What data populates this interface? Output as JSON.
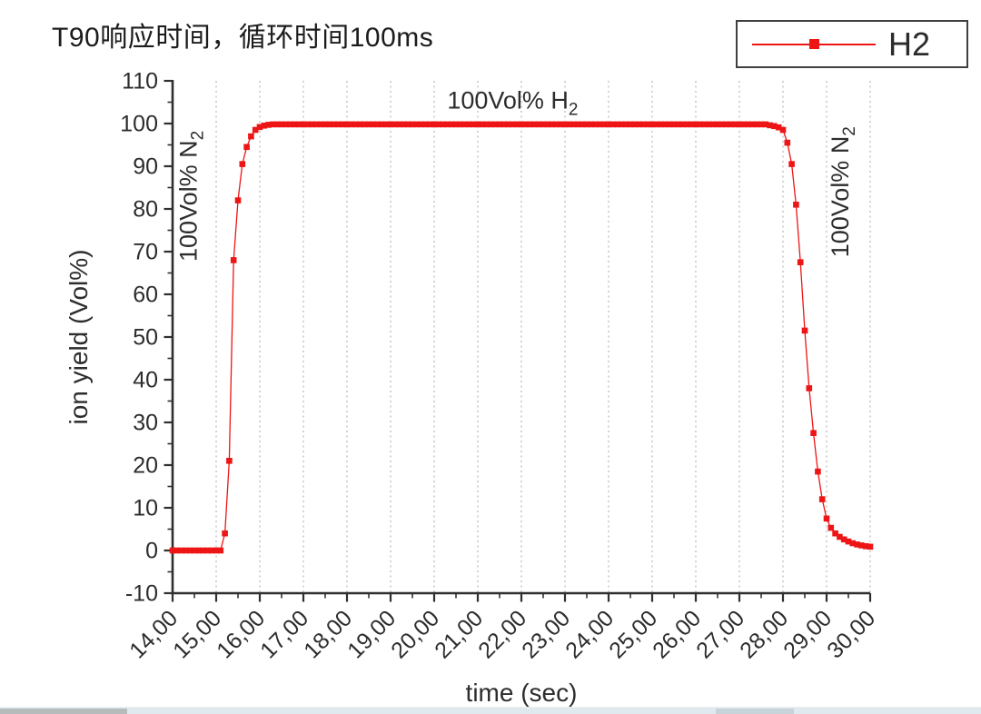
{
  "page": {
    "title": "T90响应时间，循环时间100ms"
  },
  "chart_data": {
    "type": "line",
    "title": "T90响应时间，循环时间100ms",
    "xlabel": "time (sec)",
    "ylabel": "ion yield (Vol%)",
    "xlim": [
      14,
      30
    ],
    "ylim": [
      -10,
      110
    ],
    "x_start": 14.0,
    "x_step": 0.1,
    "x_tick_labels": [
      "14,00",
      "15,00",
      "16,00",
      "17,00",
      "18,00",
      "19,00",
      "20,00",
      "21,00",
      "22,00",
      "23,00",
      "24,00",
      "25,00",
      "26,00",
      "27,00",
      "28,00",
      "29,00",
      "30,00"
    ],
    "y_tick_values": [
      -10,
      0,
      10,
      20,
      30,
      40,
      50,
      60,
      70,
      80,
      90,
      100,
      110
    ],
    "x_minor_step": 0.5,
    "y_minor_step": 5,
    "grid": "vertical-dashed-only",
    "grid_x": [
      15,
      16,
      17,
      18,
      19,
      20,
      21,
      22,
      23,
      24,
      25,
      26,
      27,
      28,
      29,
      30
    ],
    "legend_position": "top-right-outside",
    "series": [
      {
        "name": "H2",
        "color": "#ed1515",
        "marker": "square",
        "values": [
          0,
          0,
          0,
          0,
          0,
          0,
          0,
          0,
          0,
          0,
          0,
          0,
          4,
          21,
          68,
          82,
          90.5,
          94.5,
          97,
          98.5,
          99.2,
          99.5,
          99.7,
          99.8,
          99.8,
          99.8,
          99.8,
          99.8,
          99.8,
          99.8,
          99.8,
          99.8,
          99.8,
          99.8,
          99.8,
          99.8,
          99.8,
          99.8,
          99.8,
          99.8,
          99.8,
          99.8,
          99.8,
          99.8,
          99.8,
          99.8,
          99.8,
          99.8,
          99.8,
          99.8,
          99.8,
          99.8,
          99.8,
          99.8,
          99.8,
          99.8,
          99.8,
          99.8,
          99.8,
          99.8,
          99.8,
          99.8,
          99.8,
          99.8,
          99.8,
          99.8,
          99.8,
          99.8,
          99.8,
          99.8,
          99.8,
          99.8,
          99.8,
          99.8,
          99.8,
          99.8,
          99.8,
          99.8,
          99.8,
          99.8,
          99.8,
          99.8,
          99.8,
          99.8,
          99.8,
          99.8,
          99.8,
          99.8,
          99.8,
          99.8,
          99.8,
          99.8,
          99.8,
          99.8,
          99.8,
          99.8,
          99.8,
          99.8,
          99.8,
          99.8,
          99.8,
          99.8,
          99.8,
          99.8,
          99.8,
          99.8,
          99.8,
          99.8,
          99.8,
          99.8,
          99.8,
          99.8,
          99.8,
          99.8,
          99.8,
          99.8,
          99.8,
          99.8,
          99.8,
          99.8,
          99.8,
          99.8,
          99.8,
          99.8,
          99.8,
          99.8,
          99.8,
          99.8,
          99.8,
          99.8,
          99.8,
          99.8,
          99.8,
          99.8,
          99.8,
          99.8,
          99.8,
          99.6,
          99.4,
          99.1,
          98.5,
          95.5,
          90.5,
          81,
          67.5,
          51.5,
          38,
          27.5,
          18.5,
          12,
          7.5,
          5.3,
          4,
          3.2,
          2.6,
          2.1,
          1.7,
          1.4,
          1.2,
          1,
          0.9
        ]
      }
    ],
    "annotations": [
      {
        "text": "100Vol% N",
        "sub": "2",
        "rotate": -90,
        "t": 14.55,
        "v": 83
      },
      {
        "text": "100Vol% H",
        "sub": "2",
        "rotate": 0,
        "t": 21.8,
        "v": 103.5
      },
      {
        "text": "100Vol% N",
        "sub": "2",
        "rotate": -90,
        "t": 29.5,
        "v": 84
      }
    ],
    "style": {
      "series_color": "#ed1515",
      "axis_color": "#2f2f2f",
      "text_color": "#2d2d2d",
      "grid_color": "#a9a9a9"
    }
  }
}
